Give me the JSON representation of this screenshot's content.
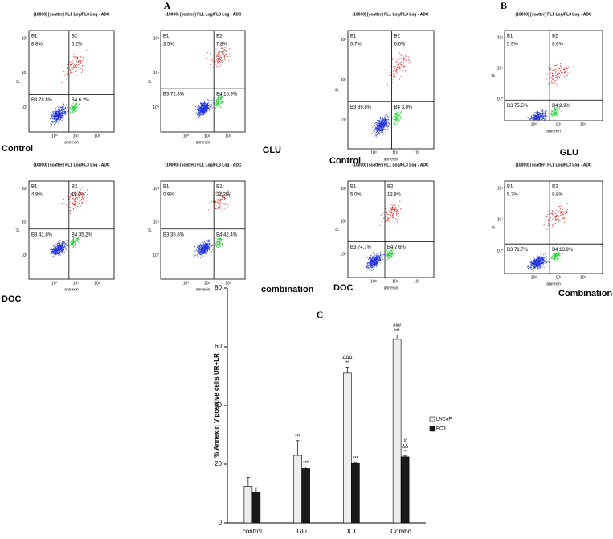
{
  "panels": [
    {
      "label": "A"
    },
    {
      "label": "B"
    }
  ],
  "dot_plot_axes": {
    "x_label": "annexin",
    "y_label": "pi",
    "x_ticks": [
      "10⁰",
      "10¹",
      "10²"
    ],
    "y_ticks": [
      "10²",
      "10¹",
      "10⁰"
    ]
  },
  "dot_plots": [
    {
      "title": "(10000) [scatter] FL1 Log/FL3 Log - ADC",
      "sample": "Control",
      "quadrants": [
        {
          "name": "B1",
          "value": "8.8%"
        },
        {
          "name": "B2",
          "value": "6.2%"
        },
        {
          "name": "B3",
          "value": "78.8%"
        },
        {
          "name": "B4",
          "value": "6.2%"
        }
      ]
    },
    {
      "title": "(10000) [scatter] FL1 Log/FL3 Log - ADC",
      "sample": "GLU",
      "quadrants": [
        {
          "name": "B1",
          "value": "3.5%"
        },
        {
          "name": "B2",
          "value": "7.8%"
        },
        {
          "name": "B3",
          "value": "72.8%"
        },
        {
          "name": "B4",
          "value": "15.9%"
        }
      ]
    },
    {
      "title": "(10000) [scatter] FL1 Log/FL3 Log - ADC",
      "sample": "DOC",
      "quadrants": [
        {
          "name": "B1",
          "value": "4.8%"
        },
        {
          "name": "B2",
          "value": "19.0%"
        },
        {
          "name": "B3",
          "value": "41.8%"
        },
        {
          "name": "B4",
          "value": "35.2%"
        }
      ]
    },
    {
      "title": "(10000) [scatter] FL1 Log/FL3 Log - ADC",
      "sample": "combination",
      "quadrants": [
        {
          "name": "B1",
          "value": "0.9%"
        },
        {
          "name": "B2",
          "value": "21.2%"
        },
        {
          "name": "B3",
          "value": "35.6%"
        },
        {
          "name": "B4",
          "value": "42.4%"
        }
      ]
    },
    {
      "title": "(10000) [scatter] FL1 Log/FL3 Log - ADC",
      "sample": "Control",
      "quadrants": [
        {
          "name": "B1",
          "value": "0.7%"
        },
        {
          "name": "B2",
          "value": "6.6%"
        },
        {
          "name": "B3",
          "value": "89.8%"
        },
        {
          "name": "B4",
          "value": "3.0%"
        }
      ]
    },
    {
      "title": "(10000) [scatter] FL1 Log/FL3 Log - ADC",
      "sample": "GLU",
      "quadrants": [
        {
          "name": "B1",
          "value": "5.9%"
        },
        {
          "name": "B2",
          "value": "8.6%"
        },
        {
          "name": "B3",
          "value": "75.5%"
        },
        {
          "name": "B4",
          "value": "9.9%"
        }
      ]
    },
    {
      "title": "(10000) [scatter] FL1 Log/FL3 Log - ADC",
      "sample": "DOC",
      "quadrants": [
        {
          "name": "B1",
          "value": "5.0%"
        },
        {
          "name": "B2",
          "value": "12.8%"
        },
        {
          "name": "B3",
          "value": "74.7%"
        },
        {
          "name": "B4",
          "value": "7.6%"
        }
      ]
    },
    {
      "title": "(10000) [scatter] FL1 Log/FL3 Log - ADC",
      "sample": "Combination",
      "quadrants": [
        {
          "name": "B1",
          "value": "5.7%"
        },
        {
          "name": "B2",
          "value": "8.8%"
        },
        {
          "name": "B3",
          "value": "71.7%"
        },
        {
          "name": "B4",
          "value": "13.9%"
        }
      ]
    }
  ],
  "chart_data": {
    "type": "bar",
    "label": "C",
    "ylabel": "% Annexin V positive cells UR+LR",
    "categories": [
      "control",
      "Glu",
      "DOC",
      "Combo"
    ],
    "series": [
      {
        "name": "LNCaP",
        "color": "#ececec",
        "values": [
          12.5,
          23,
          51,
          62.5
        ],
        "errors": [
          3,
          5,
          2,
          1.5
        ],
        "annotations": [
          [],
          [
            "***"
          ],
          [
            "ΔΔΔ",
            "**"
          ],
          [
            "###",
            "***"
          ]
        ]
      },
      {
        "name": "PC3",
        "color": "#1a1a1a",
        "values": [
          10.5,
          18.5,
          20.3,
          22.5
        ],
        "errors": [
          1.5,
          0.5,
          0.3,
          0.3
        ],
        "annotations": [
          [],
          [
            "***"
          ],
          [
            "***"
          ],
          [
            "#",
            "ΔΔ",
            "***"
          ]
        ]
      }
    ],
    "ylim": [
      0,
      80
    ],
    "yticks": [
      0,
      20,
      40,
      60,
      80
    ]
  }
}
